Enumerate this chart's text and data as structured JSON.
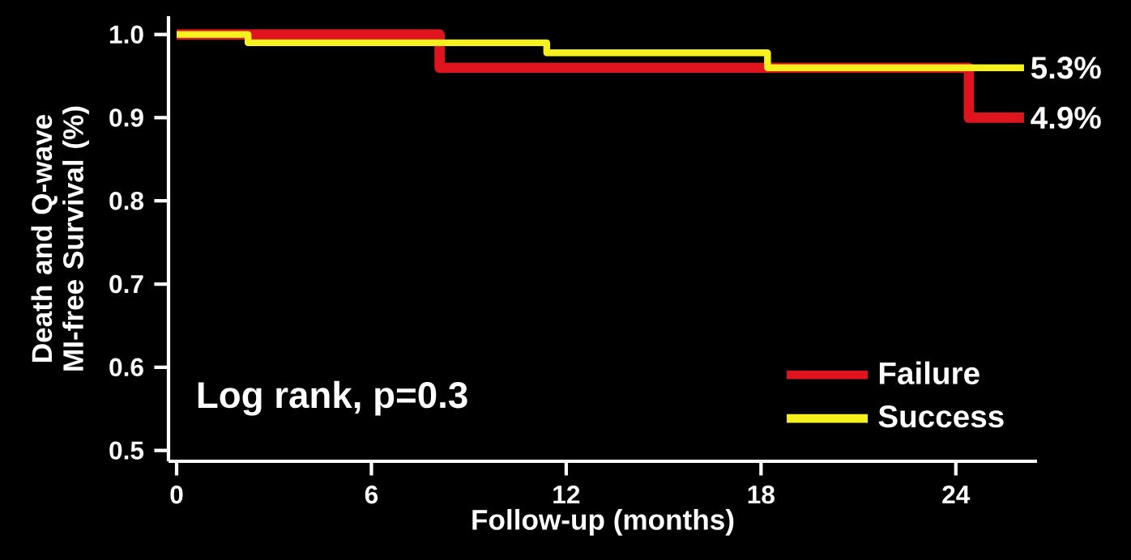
{
  "chart_data": {
    "type": "step",
    "xlabel": "Follow-up (months)",
    "ylabel": "Death and Q-wave MI-free Survival (%)",
    "series": [
      {
        "name": "Failure",
        "color": "#e0141e",
        "x": [
          0,
          8.1,
          24.4,
          26.1
        ],
        "values": [
          1,
          0.96,
          0.9,
          0.9
        ]
      },
      {
        "name": "Success",
        "color": "#f5f01e",
        "x": [
          0,
          2.2,
          11.4,
          18.2,
          26.1
        ],
        "values": [
          1,
          0.99,
          0.978,
          0.96,
          0.96
        ]
      }
    ],
    "xlim": [
      -0.25,
      26.5
    ],
    "ylim": [
      0.487,
      1.022
    ],
    "xticks": [
      0,
      6,
      12,
      18,
      24
    ],
    "yticks": [
      {
        "value": 0.5,
        "label": "0.5"
      },
      {
        "value": 0.6,
        "label": "0.6"
      },
      {
        "value": 0.7,
        "label": "0.7"
      },
      {
        "value": 0.8,
        "label": "0.8"
      },
      {
        "value": 0.9,
        "label": "0.9"
      },
      {
        "value": 1,
        "label": "1.0"
      }
    ],
    "annotations": [
      "Log rank, p=0.3",
      {
        "text": "5.3%",
        "x": 26.1,
        "y": 0.96
      },
      {
        "text": "4.9%",
        "x": 26.1,
        "y": 0.9
      }
    ],
    "legend": "bottom right",
    "grid": false,
    "marker": "none",
    "line_style": "solid"
  }
}
